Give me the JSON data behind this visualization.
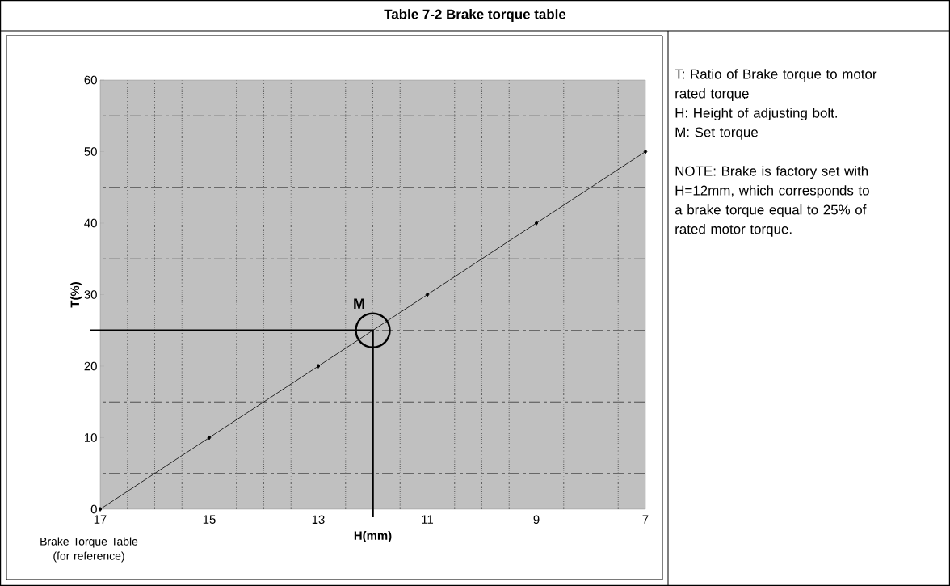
{
  "chart_data": {
    "type": "line",
    "title": "Table 7-2  Brake torque table",
    "xlabel": "H(mm)",
    "ylabel": "T(%)",
    "x": [
      17,
      15,
      13,
      11,
      9,
      7
    ],
    "values": [
      0,
      10,
      20,
      30,
      40,
      50
    ],
    "color": "#000000",
    "marker": "diamond",
    "grid": true,
    "xlim": [
      17,
      7
    ],
    "ylim": [
      0,
      60
    ],
    "xticks": [
      17,
      {
        "value": 16.5,
        "label": null
      },
      {
        "value": 16,
        "label": null
      },
      {
        "value": 15.5,
        "label": null
      },
      15,
      {
        "value": 14.5,
        "label": null
      },
      {
        "value": 14,
        "label": null
      },
      {
        "value": 13.5,
        "label": null
      },
      13,
      {
        "value": 12.5,
        "label": null
      },
      {
        "value": 12,
        "label": null
      },
      {
        "value": 11.5,
        "label": null
      },
      11,
      {
        "value": 10.5,
        "label": null
      },
      {
        "value": 10,
        "label": null
      },
      {
        "value": 9.5,
        "label": null
      },
      9,
      {
        "value": 8.5,
        "label": null
      },
      {
        "value": 8,
        "label": null
      },
      {
        "value": 7.5,
        "label": null
      },
      7
    ],
    "yticks": [
      0,
      {
        "value": 5,
        "label": null
      },
      10,
      {
        "value": 15,
        "label": null
      },
      20,
      {
        "value": 25,
        "label": null
      },
      30,
      {
        "value": 35,
        "label": null
      },
      40,
      {
        "value": 45,
        "label": null
      },
      50,
      {
        "value": 55,
        "label": null
      },
      60
    ],
    "annotations": [
      {
        "text": "M",
        "x": 12,
        "y": 25
      },
      "Brake Torque Table (for reference)",
      "T:  Ratio of Brake torque to motor rated torque",
      "H:  Height of adjusting bolt.",
      "M:  Set torque",
      "NOTE:  Brake is factory set with H=12mm, which corresponds to a brake torque equal to 25% of rated motor torque."
    ]
  }
}
